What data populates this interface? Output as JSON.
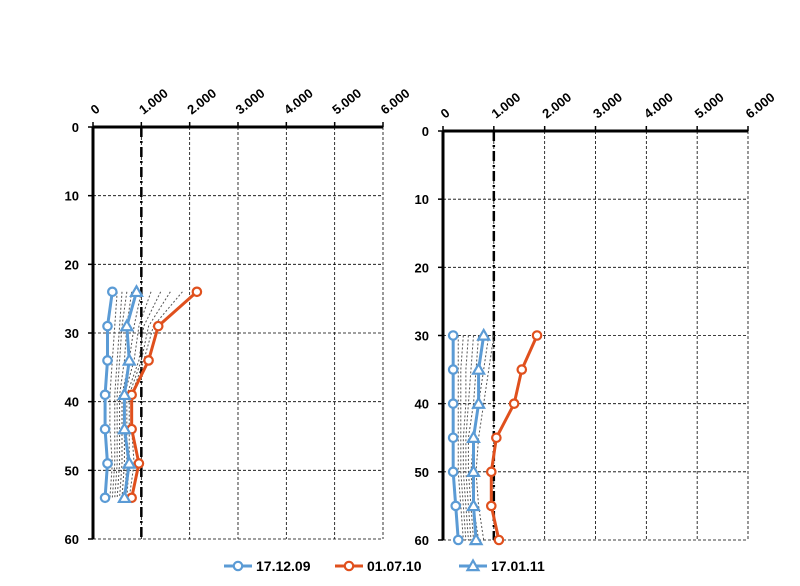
{
  "chart_data": [
    {
      "type": "line",
      "title": "",
      "xlabel": "",
      "ylabel": "",
      "xlim": [
        0,
        6000
      ],
      "ylim": [
        0,
        60
      ],
      "y_inverted": true,
      "x_axis_position": "top",
      "x_ticks": [
        "0",
        "1.000",
        "2.000",
        "3.000",
        "4.000",
        "5.000",
        "6.000"
      ],
      "y_ticks": [
        "0",
        "10",
        "20",
        "30",
        "40",
        "50",
        "60"
      ],
      "grid": true,
      "reference_line_x": 1000,
      "series": [
        {
          "name": "17.12.09",
          "x": [
            400,
            300,
            300,
            250,
            250,
            300,
            250
          ],
          "y": [
            24,
            29,
            34,
            39,
            44,
            49,
            54
          ]
        },
        {
          "name": "01.07.10",
          "x": [
            2150,
            1350,
            1150,
            800,
            800,
            950,
            800
          ],
          "y": [
            24,
            29,
            34,
            39,
            44,
            49,
            54
          ]
        },
        {
          "name": "17.01.11",
          "x": [
            900,
            700,
            750,
            650,
            650,
            750,
            650
          ],
          "y": [
            24,
            29,
            34,
            39,
            44,
            49,
            54
          ]
        }
      ],
      "other_dates_dotted": [
        {
          "x": [
            500,
            450,
            400,
            350,
            350,
            400,
            350
          ],
          "y": [
            24,
            29,
            34,
            39,
            44,
            49,
            54
          ]
        },
        {
          "x": [
            600,
            550,
            500,
            450,
            450,
            450,
            400
          ],
          "y": [
            24,
            29,
            34,
            39,
            44,
            49,
            54
          ]
        },
        {
          "x": [
            700,
            600,
            550,
            500,
            500,
            500,
            450
          ],
          "y": [
            24,
            29,
            34,
            39,
            44,
            49,
            54
          ]
        },
        {
          "x": [
            800,
            700,
            650,
            550,
            550,
            550,
            500
          ],
          "y": [
            24,
            29,
            34,
            39,
            44,
            49,
            54
          ]
        },
        {
          "x": [
            1000,
            850,
            750,
            600,
            600,
            600,
            550
          ],
          "y": [
            24,
            29,
            34,
            39,
            44,
            49,
            54
          ]
        },
        {
          "x": [
            1200,
            950,
            850,
            650,
            650,
            650,
            600
          ],
          "y": [
            24,
            29,
            34,
            39,
            44,
            49,
            54
          ]
        },
        {
          "x": [
            1400,
            1050,
            950,
            700,
            700,
            700,
            650
          ],
          "y": [
            24,
            29,
            34,
            39,
            44,
            49,
            54
          ]
        },
        {
          "x": [
            1600,
            1150,
            1000,
            750,
            750,
            750,
            700
          ],
          "y": [
            24,
            29,
            34,
            39,
            44,
            49,
            54
          ]
        },
        {
          "x": [
            1850,
            1250,
            1050,
            800,
            800,
            850,
            750
          ],
          "y": [
            24,
            29,
            34,
            39,
            44,
            49,
            54
          ]
        }
      ]
    },
    {
      "type": "line",
      "title": "",
      "xlabel": "",
      "ylabel": "",
      "xlim": [
        0,
        6000
      ],
      "ylim": [
        0,
        60
      ],
      "y_inverted": true,
      "x_axis_position": "top",
      "x_ticks": [
        "0",
        "1.000",
        "2.000",
        "3.000",
        "4.000",
        "5.000",
        "6.000"
      ],
      "y_ticks": [
        "0",
        "10",
        "20",
        "30",
        "40",
        "50",
        "60"
      ],
      "grid": true,
      "reference_line_x": 1000,
      "series": [
        {
          "name": "17.12.09",
          "x": [
            200,
            200,
            200,
            200,
            200,
            250,
            300
          ],
          "y": [
            30,
            35,
            40,
            45,
            50,
            55,
            60
          ]
        },
        {
          "name": "01.07.10",
          "x": [
            1850,
            1550,
            1400,
            1050,
            950,
            950,
            1100
          ],
          "y": [
            30,
            35,
            40,
            45,
            50,
            55,
            60
          ]
        },
        {
          "name": "17.01.11",
          "x": [
            800,
            700,
            700,
            600,
            600,
            600,
            650
          ],
          "y": [
            30,
            35,
            40,
            45,
            50,
            55,
            60
          ]
        }
      ],
      "other_dates_dotted": [
        {
          "x": [
            300,
            300,
            300,
            300,
            300,
            350,
            400
          ],
          "y": [
            30,
            35,
            40,
            45,
            50,
            55,
            60
          ]
        },
        {
          "x": [
            400,
            350,
            350,
            350,
            350,
            400,
            450
          ],
          "y": [
            30,
            35,
            40,
            45,
            50,
            55,
            60
          ]
        },
        {
          "x": [
            500,
            450,
            450,
            400,
            400,
            450,
            500
          ],
          "y": [
            30,
            35,
            40,
            45,
            50,
            55,
            60
          ]
        },
        {
          "x": [
            600,
            550,
            500,
            450,
            450,
            500,
            550
          ],
          "y": [
            30,
            35,
            40,
            45,
            50,
            55,
            60
          ]
        },
        {
          "x": [
            700,
            650,
            600,
            500,
            500,
            550,
            600
          ],
          "y": [
            30,
            35,
            40,
            45,
            50,
            55,
            60
          ]
        },
        {
          "x": [
            900,
            800,
            700,
            600,
            550,
            600,
            700
          ],
          "y": [
            30,
            35,
            40,
            45,
            50,
            55,
            60
          ]
        },
        {
          "x": [
            1000,
            900,
            800,
            700,
            650,
            700,
            800
          ],
          "y": [
            30,
            35,
            40,
            45,
            50,
            55,
            60
          ]
        }
      ]
    }
  ],
  "legend": {
    "position": "bottom",
    "items": [
      {
        "label": "17.12.09",
        "color": "#5b9bd5",
        "marker": "circle"
      },
      {
        "label": "01.07.10",
        "color": "#e0501d",
        "marker": "circle"
      },
      {
        "label": "17.01.11",
        "color": "#5b9bd5",
        "marker": "triangle"
      }
    ]
  },
  "colors": {
    "blue": "#5b9bd5",
    "orange": "#e0501d",
    "grid": "#000000",
    "dotted": "#555555"
  }
}
